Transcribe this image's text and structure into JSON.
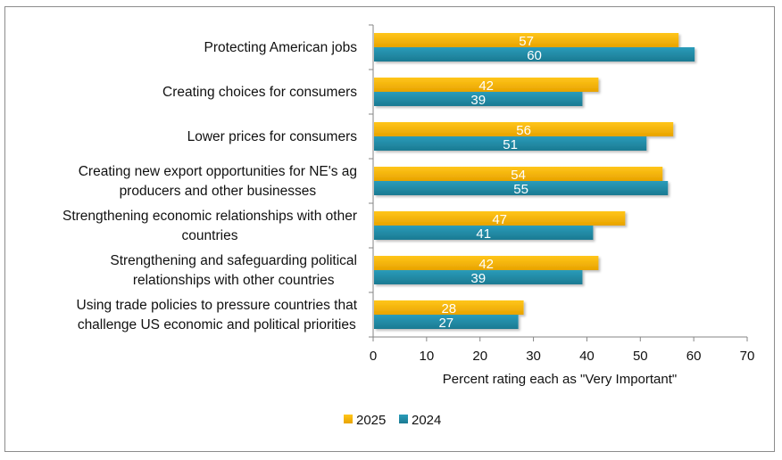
{
  "chart_data": {
    "type": "bar",
    "orientation": "horizontal",
    "title": "",
    "xlabel": "Percent rating each as \"Very Important\"",
    "ylabel": "",
    "xlim": [
      0,
      70
    ],
    "xticks": [
      0,
      10,
      20,
      30,
      40,
      50,
      60,
      70
    ],
    "grid": false,
    "legend_position": "bottom",
    "categories": [
      [
        "Protecting American jobs"
      ],
      [
        "Creating choices for consumers"
      ],
      [
        "Lower prices for consumers"
      ],
      [
        "Creating new export opportunities for NE's ag",
        "producers and other businesses"
      ],
      [
        "Strengthening economic relationships with other",
        "countries"
      ],
      [
        "Strengthening and safeguarding political",
        "relationships with other countries"
      ],
      [
        "Using trade policies to pressure countries that",
        "challenge US economic and political priorities"
      ]
    ],
    "series": [
      {
        "name": "2025",
        "color": "#F5B800",
        "values": [
          57,
          42,
          56,
          54,
          47,
          42,
          28
        ]
      },
      {
        "name": "2024",
        "color": "#1F8FAA",
        "values": [
          60,
          39,
          51,
          55,
          41,
          39,
          27
        ]
      }
    ]
  }
}
